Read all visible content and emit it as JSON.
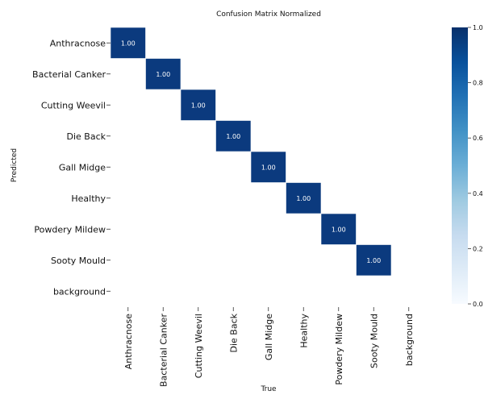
{
  "chart_data": {
    "type": "heatmap",
    "title": "Confusion Matrix Normalized",
    "xlabel": "True",
    "ylabel": "Predicted",
    "categories": [
      "Anthracnose",
      "Bacterial Canker",
      "Cutting Weevil",
      "Die Back",
      "Gall Midge",
      "Healthy",
      "Powdery Mildew",
      "Sooty Mould",
      "background"
    ],
    "cells": [
      {
        "row": "Anthracnose",
        "col": "Anthracnose",
        "value": 1.0,
        "label": "1.00"
      },
      {
        "row": "Bacterial Canker",
        "col": "Bacterial Canker",
        "value": 1.0,
        "label": "1.00"
      },
      {
        "row": "Cutting Weevil",
        "col": "Cutting Weevil",
        "value": 1.0,
        "label": "1.00"
      },
      {
        "row": "Die Back",
        "col": "Die Back",
        "value": 1.0,
        "label": "1.00"
      },
      {
        "row": "Gall Midge",
        "col": "Gall Midge",
        "value": 1.0,
        "label": "1.00"
      },
      {
        "row": "Healthy",
        "col": "Healthy",
        "value": 1.0,
        "label": "1.00"
      },
      {
        "row": "Powdery Mildew",
        "col": "Powdery Mildew",
        "value": 1.0,
        "label": "1.00"
      },
      {
        "row": "Sooty Mould",
        "col": "Sooty Mould",
        "value": 1.0,
        "label": "1.00"
      }
    ],
    "colorbar": {
      "range": [
        0.0,
        1.0
      ],
      "ticks": [
        "0.0",
        "0.2",
        "0.4",
        "0.6",
        "0.8",
        "1.0"
      ],
      "colormap": "Blues",
      "color_low": "#f7fbff",
      "color_high": "#08306b"
    },
    "cell_color": "#0b3a7e",
    "grid": false
  }
}
